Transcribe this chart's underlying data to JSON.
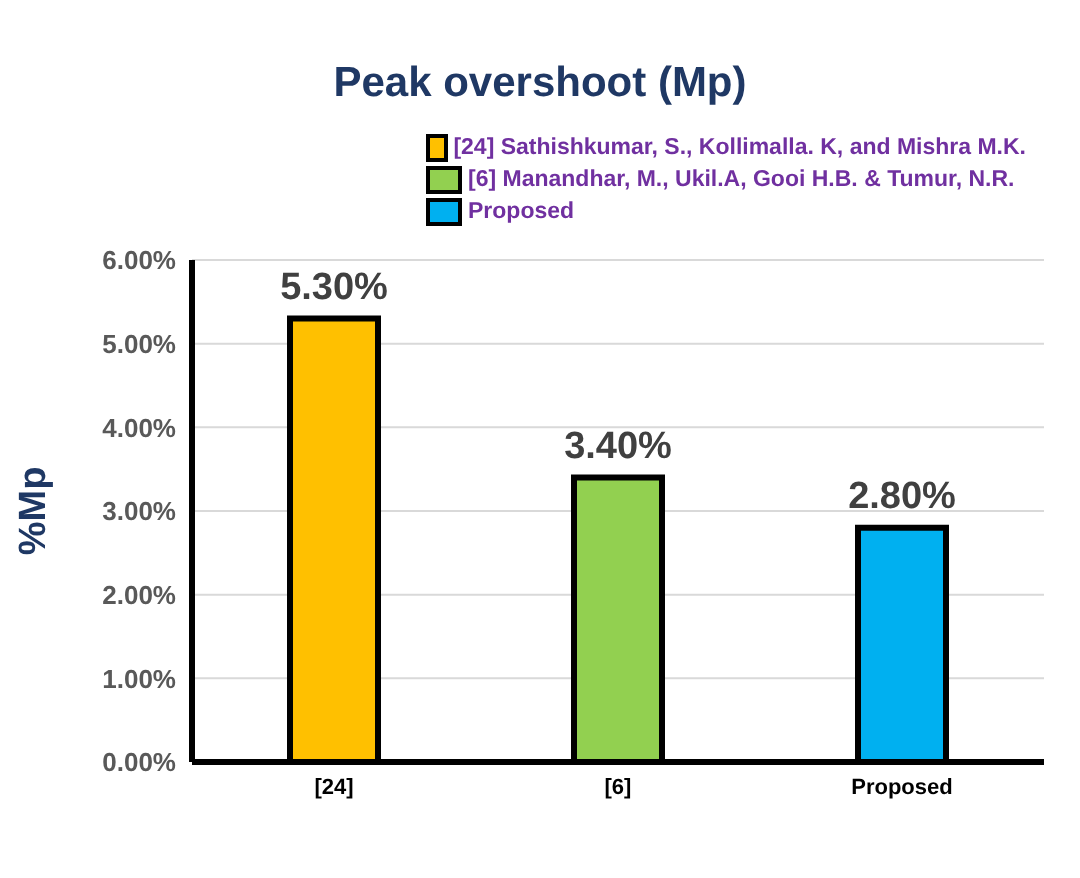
{
  "chart_data": {
    "type": "bar",
    "title": "Peak overshoot (Mp)",
    "ylabel": "%Mp",
    "categories": [
      "[24]",
      "[6]",
      "Proposed"
    ],
    "series": [
      {
        "name": "[24] Sathishkumar, S., Kollimalla. K, and Mishra M.K.",
        "color": "#ffc000",
        "values": [
          5.3,
          null,
          null
        ],
        "value_labels": [
          "5.30%",
          null,
          null
        ]
      },
      {
        "name": "[6] Manandhar, M., Ukil.A, Gooi H.B. & Tumur, N.R.",
        "color": "#92d050",
        "values": [
          null,
          3.4,
          null
        ],
        "value_labels": [
          null,
          "3.40%",
          null
        ]
      },
      {
        "name": "Proposed",
        "color": "#00b0f0",
        "values": [
          null,
          null,
          2.8
        ],
        "value_labels": [
          null,
          null,
          "2.80%"
        ]
      }
    ],
    "ylim": [
      0,
      6
    ],
    "yticks": [
      {
        "value": 0,
        "label": "0.00%"
      },
      {
        "value": 1,
        "label": "1.00%"
      },
      {
        "value": 2,
        "label": "2.00%"
      },
      {
        "value": 3,
        "label": "3.00%"
      },
      {
        "value": 4,
        "label": "4.00%"
      },
      {
        "value": 5,
        "label": "5.00%"
      },
      {
        "value": 6,
        "label": "6.00%"
      }
    ],
    "grid": "y",
    "legend": "top right"
  }
}
